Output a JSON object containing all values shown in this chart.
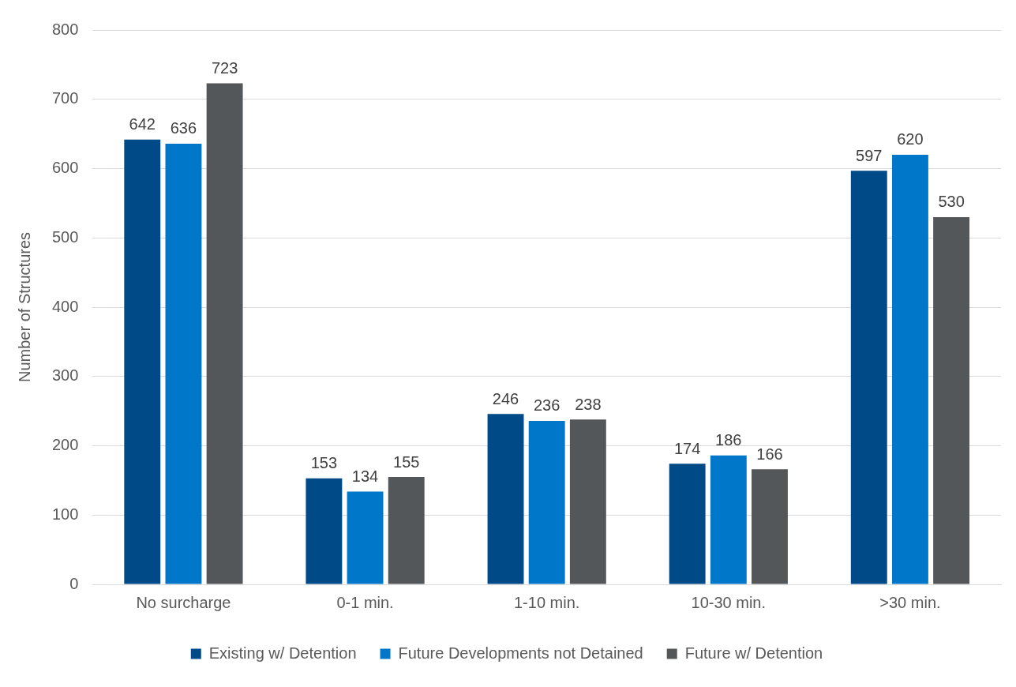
{
  "chart_data": {
    "type": "bar",
    "ylabel": "Number of Structures",
    "categories": [
      "No surcharge",
      "0-1 min.",
      "1-10 min.",
      "10-30 min.",
      ">30 min."
    ],
    "series": [
      {
        "name": "Existing w/ Detention",
        "color": "#004b87",
        "values": [
          642,
          153,
          246,
          174,
          597
        ]
      },
      {
        "name": "Future Developments not Detained",
        "color": "#0077c8",
        "values": [
          636,
          134,
          236,
          186,
          620
        ]
      },
      {
        "name": "Future w/ Detention",
        "color": "#54575a",
        "values": [
          723,
          155,
          238,
          166,
          530
        ]
      }
    ],
    "ylim": [
      0,
      800
    ],
    "yticks": [
      0,
      100,
      200,
      300,
      400,
      500,
      600,
      700,
      800
    ],
    "grid": "y",
    "legend": "bottom",
    "data_labels": true
  }
}
